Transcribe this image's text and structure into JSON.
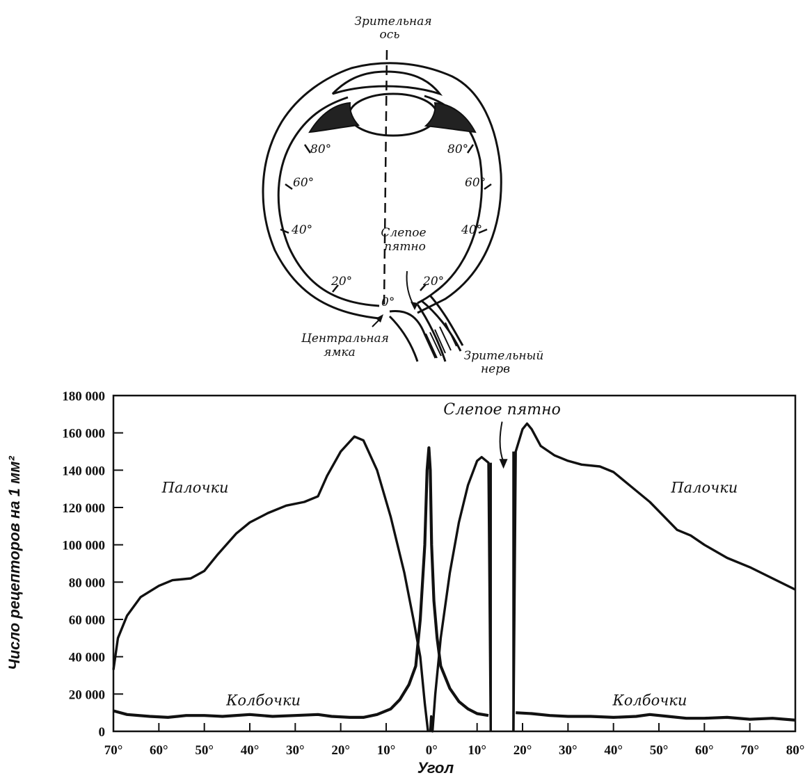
{
  "diagram": {
    "labels": {
      "optical_axis_line1": "Зрительная",
      "optical_axis_line2": "ось",
      "blind_spot_line1": "Слепое",
      "blind_spot_line2": "пятно",
      "fovea_line1": "Центральная",
      "fovea_line2": "ямка",
      "nerve_line1": "Зрительный",
      "nerve_line2": "нерв"
    },
    "angle_marks_left": [
      "80°",
      "60°",
      "40°",
      "20°"
    ],
    "angle_marks_right": [
      "80°",
      "60°",
      "40°",
      "20°"
    ],
    "center_mark": "0°"
  },
  "chart_data": {
    "type": "line",
    "title": "",
    "xlabel": "Угол",
    "ylabel": "Число рецепторов на 1 мм²",
    "xlim": [
      -70,
      80
    ],
    "ylim": [
      0,
      180000
    ],
    "x_tick_values": [
      -70,
      -60,
      -50,
      -40,
      -30,
      -20,
      -10,
      0,
      10,
      20,
      30,
      40,
      50,
      60,
      70,
      80
    ],
    "x_tick_labels": [
      "70°",
      "60°",
      "50°",
      "40°",
      "30°",
      "20°",
      "10°",
      "0°",
      "10°",
      "20°",
      "30°",
      "40°",
      "50°",
      "60°",
      "70°",
      "80°"
    ],
    "y_tick_values": [
      0,
      20000,
      40000,
      60000,
      80000,
      100000,
      120000,
      140000,
      160000,
      180000
    ],
    "y_tick_labels": [
      "0",
      "20 000",
      "40 000",
      "60 000",
      "80 000",
      "100 000",
      "120 000",
      "140 000",
      "160 000",
      "180 000"
    ],
    "annotations": [
      {
        "text": "Слепое пятно",
        "x": 15.5,
        "y": 170000
      },
      {
        "text": "Палочки",
        "x": -52,
        "y": 128000
      },
      {
        "text": "Палочки",
        "x": 60,
        "y": 128000
      },
      {
        "text": "Колбочки",
        "x": -37,
        "y": 14000
      },
      {
        "text": "Колбочки",
        "x": 48,
        "y": 14000
      }
    ],
    "series": [
      {
        "name": "Палочки",
        "segments": [
          [
            [
              -70,
              33000
            ],
            [
              -69,
              50000
            ],
            [
              -67,
              62000
            ],
            [
              -64,
              72000
            ],
            [
              -60,
              78000
            ],
            [
              -57,
              81000
            ],
            [
              -53,
              82000
            ],
            [
              -50,
              86000
            ],
            [
              -47,
              95000
            ],
            [
              -43,
              106000
            ],
            [
              -40,
              112000
            ],
            [
              -36,
              117000
            ],
            [
              -32,
              121000
            ],
            [
              -28,
              123000
            ],
            [
              -25,
              126000
            ],
            [
              -23,
              137000
            ],
            [
              -20,
              150000
            ],
            [
              -17,
              158000
            ],
            [
              -15,
              156000
            ],
            [
              -12,
              140000
            ],
            [
              -9,
              115000
            ],
            [
              -6,
              85000
            ],
            [
              -4,
              60000
            ],
            [
              -2.5,
              40000
            ],
            [
              -1.5,
              15000
            ],
            [
              -0.8,
              0
            ]
          ],
          [
            [
              -0.3,
              0
            ],
            [
              -0.1,
              8000
            ],
            [
              0.2,
              0
            ],
            [
              0.8,
              20000
            ],
            [
              2,
              50000
            ],
            [
              4,
              85000
            ],
            [
              6,
              112000
            ],
            [
              8,
              132000
            ],
            [
              10,
              145000
            ],
            [
              11,
              147000
            ],
            [
              12.5,
              144000
            ],
            [
              13,
              0
            ]
          ],
          [
            [
              18,
              0
            ],
            [
              18.5,
              150000
            ],
            [
              20,
              162000
            ],
            [
              21,
              165000
            ],
            [
              22,
              162000
            ],
            [
              24,
              153000
            ],
            [
              27,
              148000
            ],
            [
              30,
              145000
            ],
            [
              33,
              143000
            ],
            [
              37,
              142000
            ],
            [
              40,
              139000
            ],
            [
              44,
              131000
            ],
            [
              48,
              123000
            ],
            [
              52,
              113000
            ],
            [
              54,
              108000
            ],
            [
              57,
              105000
            ],
            [
              60,
              100000
            ],
            [
              65,
              93000
            ],
            [
              70,
              88000
            ],
            [
              75,
              82000
            ],
            [
              80,
              76000
            ]
          ]
        ]
      },
      {
        "name": "Колбочки",
        "segments": [
          [
            [
              -70,
              11000
            ],
            [
              -67,
              9000
            ],
            [
              -62,
              8000
            ],
            [
              -58,
              7500
            ],
            [
              -54,
              8500
            ],
            [
              -50,
              8500
            ],
            [
              -46,
              8000
            ],
            [
              -40,
              9000
            ],
            [
              -35,
              8000
            ],
            [
              -30,
              8500
            ],
            [
              -25,
              9000
            ],
            [
              -22,
              8000
            ],
            [
              -18,
              7500
            ],
            [
              -15,
              7500
            ],
            [
              -12,
              9000
            ],
            [
              -9,
              12000
            ],
            [
              -7,
              17000
            ],
            [
              -5,
              25000
            ],
            [
              -3.5,
              35000
            ],
            [
              -2.5,
              60000
            ],
            [
              -1.5,
              100000
            ],
            [
              -1,
              140000
            ],
            [
              -0.6,
              152000
            ],
            [
              -0.3,
              140000
            ],
            [
              0,
              100000
            ],
            [
              0.5,
              70000
            ],
            [
              1.2,
              50000
            ],
            [
              2,
              35000
            ],
            [
              4,
              23000
            ],
            [
              6,
              16000
            ],
            [
              8,
              12000
            ],
            [
              10,
              9500
            ],
            [
              12.5,
              8500
            ]
          ],
          [
            [
              18.5,
              10000
            ],
            [
              22,
              9500
            ],
            [
              26,
              8500
            ],
            [
              30,
              8000
            ],
            [
              35,
              8000
            ],
            [
              40,
              7500
            ],
            [
              45,
              8000
            ],
            [
              48,
              9000
            ],
            [
              52,
              8000
            ],
            [
              56,
              7000
            ],
            [
              60,
              7000
            ],
            [
              65,
              7500
            ],
            [
              70,
              6500
            ],
            [
              75,
              7000
            ],
            [
              80,
              6000
            ]
          ]
        ]
      }
    ],
    "gaps": [
      [
        13,
        18
      ]
    ],
    "arrow": {
      "from": [
        15.5,
        166000
      ],
      "to": [
        15.8,
        143000
      ]
    }
  }
}
